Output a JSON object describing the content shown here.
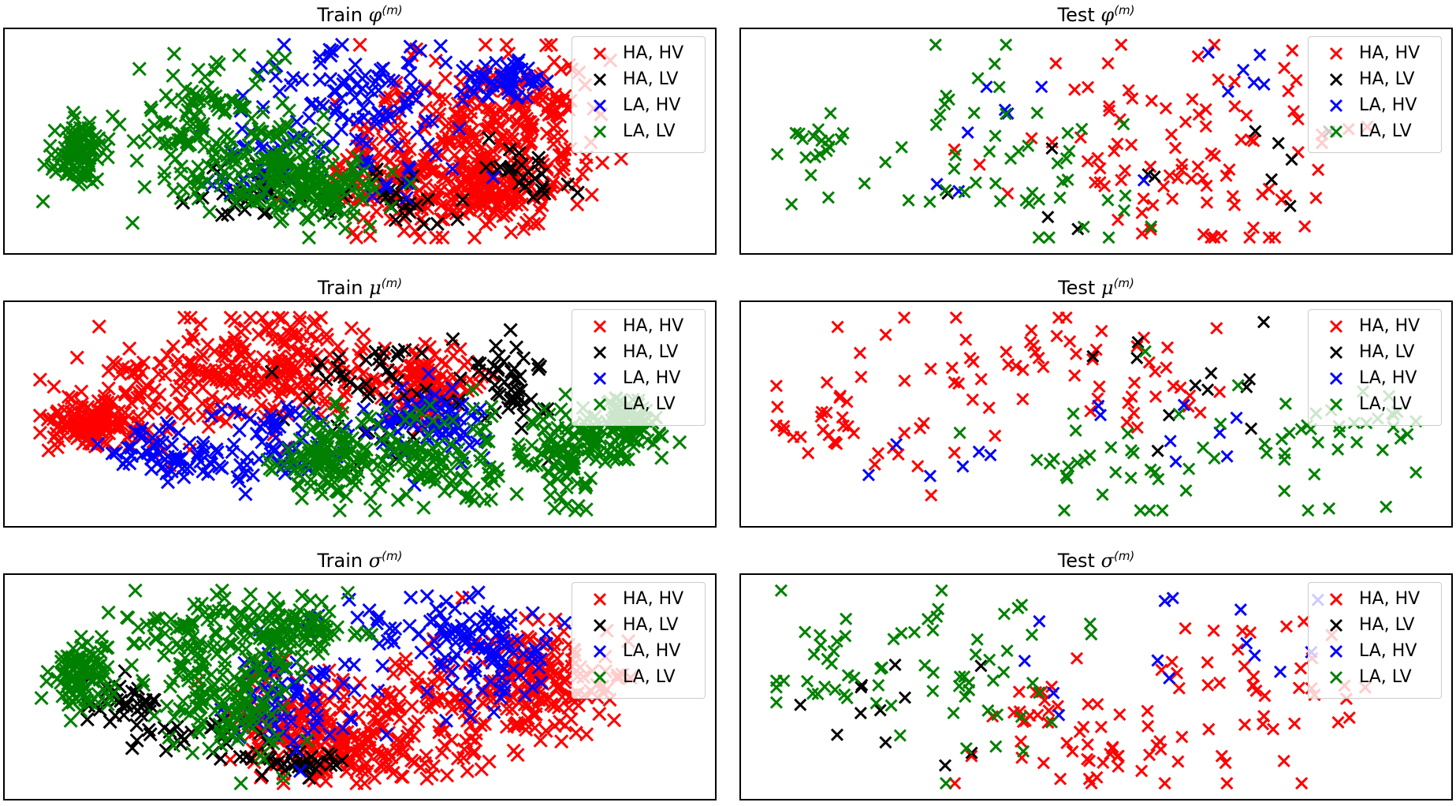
{
  "colors": {
    "HA, HV": "#ff0000",
    "HA, LV": "#000000",
    "LA, HV": "#0000ff",
    "LA, LV": "#008000"
  },
  "legend": [
    "HA, HV",
    "HA, LV",
    "LA, HV",
    "LA, LV"
  ],
  "chart_data": [
    {
      "type": "scatter",
      "title_prefix": "Train",
      "title_symbol": "φ",
      "title_superscript": "(m)",
      "split": "train",
      "seed": 11,
      "layout": "phi",
      "series": [
        {
          "name": "HA, HV",
          "count": 520
        },
        {
          "name": "HA, LV",
          "count": 90
        },
        {
          "name": "LA, HV",
          "count": 200
        },
        {
          "name": "LA, LV",
          "count": 420
        }
      ],
      "grid": false,
      "legend_position": "upper right"
    },
    {
      "type": "scatter",
      "title_prefix": "Test",
      "title_symbol": "φ",
      "title_superscript": "(m)",
      "split": "test",
      "seed": 21,
      "layout": "phi",
      "series": [
        {
          "name": "HA, HV",
          "count": 95
        },
        {
          "name": "HA, LV",
          "count": 12
        },
        {
          "name": "LA, HV",
          "count": 14
        },
        {
          "name": "LA, LV",
          "count": 70
        }
      ],
      "grid": false,
      "legend_position": "upper right"
    },
    {
      "type": "scatter",
      "title_prefix": "Train",
      "title_symbol": "μ",
      "title_superscript": "(m)",
      "split": "train",
      "seed": 31,
      "layout": "mu",
      "series": [
        {
          "name": "HA, HV",
          "count": 520
        },
        {
          "name": "HA, LV",
          "count": 90
        },
        {
          "name": "LA, HV",
          "count": 200
        },
        {
          "name": "LA, LV",
          "count": 420
        }
      ],
      "grid": false,
      "legend_position": "upper right"
    },
    {
      "type": "scatter",
      "title_prefix": "Test",
      "title_symbol": "μ",
      "title_superscript": "(m)",
      "split": "test",
      "seed": 41,
      "layout": "mu",
      "series": [
        {
          "name": "HA, HV",
          "count": 95
        },
        {
          "name": "HA, LV",
          "count": 12
        },
        {
          "name": "LA, HV",
          "count": 14
        },
        {
          "name": "LA, LV",
          "count": 70
        }
      ],
      "grid": false,
      "legend_position": "upper right"
    },
    {
      "type": "scatter",
      "title_prefix": "Train",
      "title_symbol": "σ",
      "title_superscript": "(m)",
      "split": "train",
      "seed": 51,
      "layout": "sigma",
      "series": [
        {
          "name": "HA, HV",
          "count": 520
        },
        {
          "name": "HA, LV",
          "count": 90
        },
        {
          "name": "LA, HV",
          "count": 200
        },
        {
          "name": "LA, LV",
          "count": 420
        }
      ],
      "grid": false,
      "legend_position": "upper right"
    },
    {
      "type": "scatter",
      "title_prefix": "Test",
      "title_symbol": "σ",
      "title_superscript": "(m)",
      "split": "test",
      "seed": 61,
      "layout": "sigma",
      "series": [
        {
          "name": "HA, HV",
          "count": 95
        },
        {
          "name": "HA, LV",
          "count": 12
        },
        {
          "name": "LA, HV",
          "count": 14
        },
        {
          "name": "LA, LV",
          "count": 70
        }
      ],
      "grid": false,
      "legend_position": "upper right"
    }
  ]
}
